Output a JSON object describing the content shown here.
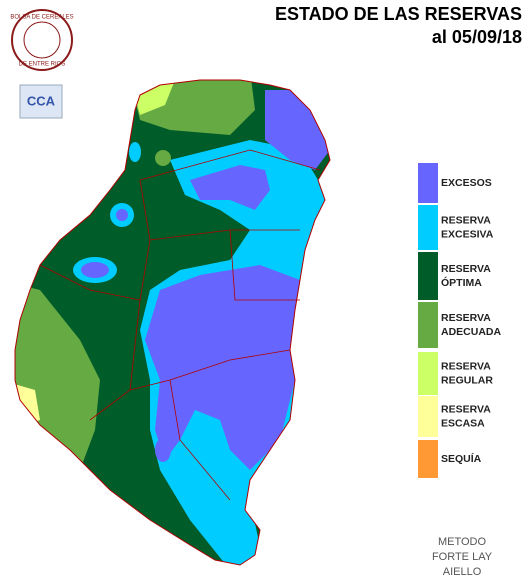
{
  "header": {
    "title": "ESTADO DE LAS RESERVAS",
    "date": "al 05/09/18"
  },
  "logo": {
    "top": "BOLSA DE CEREALES",
    "bottom": "DE ENTRE RIOS",
    "badge": "CCA"
  },
  "legend": {
    "items": [
      {
        "label": [
          "EXCESOS"
        ],
        "color": "#6666ff"
      },
      {
        "label": [
          "RESERVA",
          "EXCESIVA"
        ],
        "color": "#00ccff"
      },
      {
        "label": [
          "RESERVA",
          "ÓPTIMA"
        ],
        "color": "#005c28"
      },
      {
        "label": [
          "RESERVA",
          "ADECUADA"
        ],
        "color": "#66aa44"
      },
      {
        "label": [
          "RESERVA",
          "REGULAR"
        ],
        "color": "#ccff66"
      },
      {
        "label": [
          "RESERVA",
          "ESCASA"
        ],
        "color": "#ffff99"
      },
      {
        "label": [
          "SEQUÍA"
        ],
        "color": "#ff9933"
      }
    ]
  },
  "method": [
    "METODO",
    "FORTE LAY",
    "AIELLO"
  ]
}
